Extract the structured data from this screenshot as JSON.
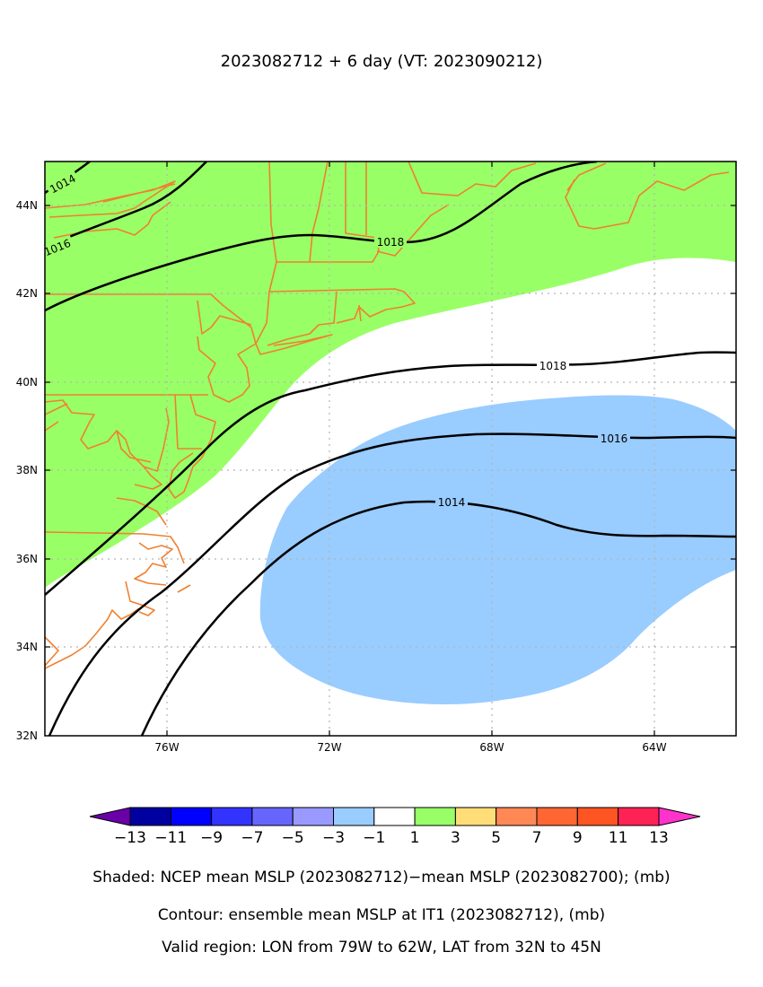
{
  "title": "2023082712 + 6 day (VT: 2023090212)",
  "map": {
    "lon_labels": [
      "76W",
      "72W",
      "68W",
      "64W"
    ],
    "lat_labels": [
      "44N",
      "42N",
      "40N",
      "38N",
      "36N",
      "34N",
      "32N"
    ],
    "lon_range": [
      -79,
      -62
    ],
    "lat_range": [
      32,
      45
    ],
    "grid": "dotted gray"
  },
  "contours": [
    {
      "name": "1014",
      "label": "1014"
    },
    {
      "name": "1016",
      "label": "1016"
    },
    {
      "name": "1018",
      "label": "1018"
    }
  ],
  "colorbar": {
    "labels": [
      "−13",
      "−11",
      "−9",
      "−7",
      "−5",
      "−3",
      "−1",
      "1",
      "3",
      "5",
      "7",
      "9",
      "11",
      "13"
    ],
    "colors": [
      "#6a00a8",
      "#0000a0",
      "#0000ff",
      "#3333ff",
      "#6666ff",
      "#9999ff",
      "#99ccff",
      "#ffffff",
      "#99ff66",
      "#ffdd77",
      "#ff8855",
      "#ff6633",
      "#ff5522",
      "#ff2255",
      "#ff33cc"
    ]
  },
  "captions": {
    "shaded": "Shaded: NCEP mean MSLP (2023082712)−mean MSLP (2023082700); (mb)",
    "contour": "Contour: ensemble mean MSLP at IT1 (2023082712), (mb)",
    "region": "Valid region: LON from 79W to 62W, LAT from 32N to 45N"
  },
  "colors": {
    "positive_shade": "#99ff66",
    "negative_shade": "#99ccff",
    "coastline": "#f08030",
    "contour": "#000000"
  }
}
